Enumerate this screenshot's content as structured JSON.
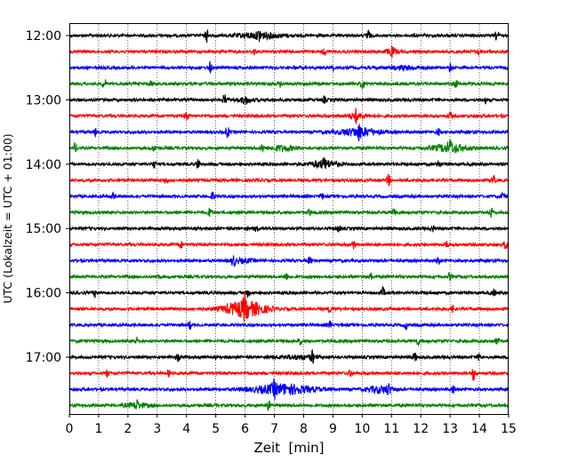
{
  "chart_data": {
    "type": "line",
    "subtype": "helicorder",
    "xlabel": "Zeit  [min]",
    "ylabel": "UTC (Lokalzeit = UTC + 01:00)",
    "xlim": [
      0,
      15
    ],
    "x_ticks": [
      "0",
      "1",
      "2",
      "3",
      "4",
      "5",
      "6",
      "7",
      "8",
      "9",
      "10",
      "11",
      "12",
      "13",
      "14",
      "15"
    ],
    "y_ticks": [
      "12:00",
      "13:00",
      "14:00",
      "15:00",
      "16:00",
      "17:00"
    ],
    "grid": "vertical dotted at each minute",
    "trace_minutes": 15,
    "trace_colors": [
      "#000000",
      "#ff0000",
      "#0000ff",
      "#008000"
    ],
    "traces": [
      {
        "start": "12:00",
        "color": "#000000",
        "events": [
          [
            4.7,
            0.6
          ],
          [
            6.5,
            0.4
          ],
          [
            10.2,
            0.5
          ],
          [
            14.6,
            0.5
          ]
        ],
        "bursts": [
          [
            6.5,
            1.5,
            0.25
          ]
        ]
      },
      {
        "start": "12:15",
        "color": "#ff0000",
        "events": [
          [
            6.3,
            0.3
          ],
          [
            8.7,
            0.3
          ],
          [
            11.0,
            0.3
          ],
          [
            14.0,
            0.3
          ]
        ],
        "bursts": [
          [
            11.0,
            0.5,
            0.2
          ]
        ]
      },
      {
        "start": "12:30",
        "color": "#0000ff",
        "events": [
          [
            4.8,
            0.5
          ],
          [
            9.0,
            0.2
          ],
          [
            13.0,
            0.3
          ]
        ],
        "bursts": [
          [
            11.5,
            1.0,
            0.15
          ]
        ]
      },
      {
        "start": "12:45",
        "color": "#008000",
        "events": [
          [
            1.2,
            0.4
          ],
          [
            2.8,
            0.3
          ],
          [
            7.2,
            0.3
          ],
          [
            10.0,
            0.4
          ],
          [
            13.2,
            0.3
          ]
        ],
        "bursts": []
      },
      {
        "start": "13:00",
        "color": "#000000",
        "events": [
          [
            5.3,
            0.5
          ],
          [
            6.0,
            0.3
          ],
          [
            8.7,
            0.3
          ],
          [
            14.2,
            0.3
          ]
        ],
        "bursts": [
          [
            6.0,
            0.6,
            0.15
          ]
        ]
      },
      {
        "start": "13:15",
        "color": "#ff0000",
        "events": [
          [
            4.0,
            0.4
          ],
          [
            9.8,
            0.5
          ],
          [
            13.0,
            0.3
          ]
        ],
        "bursts": [
          [
            9.8,
            0.8,
            0.2
          ]
        ]
      },
      {
        "start": "13:30",
        "color": "#0000ff",
        "events": [
          [
            0.9,
            0.3
          ],
          [
            5.4,
            0.5
          ],
          [
            9.9,
            0.5
          ],
          [
            12.6,
            0.3
          ]
        ],
        "bursts": [
          [
            9.9,
            1.4,
            0.35
          ]
        ]
      },
      {
        "start": "13:45",
        "color": "#008000",
        "events": [
          [
            0.2,
            0.4
          ],
          [
            2.9,
            0.3
          ],
          [
            6.6,
            0.3
          ],
          [
            13.0,
            0.5
          ]
        ],
        "bursts": [
          [
            13.0,
            1.2,
            0.35
          ],
          [
            7.3,
            1.0,
            0.2
          ]
        ]
      },
      {
        "start": "14:00",
        "color": "#000000",
        "events": [
          [
            2.9,
            0.3
          ],
          [
            4.4,
            0.5
          ],
          [
            8.7,
            0.3
          ],
          [
            12.6,
            0.4
          ]
        ],
        "bursts": [
          [
            8.7,
            1.0,
            0.3
          ]
        ]
      },
      {
        "start": "14:15",
        "color": "#ff0000",
        "events": [
          [
            3.3,
            0.3
          ],
          [
            10.9,
            0.5
          ],
          [
            14.5,
            0.3
          ]
        ],
        "bursts": []
      },
      {
        "start": "14:30",
        "color": "#0000ff",
        "events": [
          [
            1.5,
            0.3
          ],
          [
            4.9,
            0.4
          ],
          [
            8.6,
            0.3
          ],
          [
            14.8,
            0.3
          ]
        ],
        "bursts": []
      },
      {
        "start": "14:45",
        "color": "#008000",
        "events": [
          [
            4.8,
            0.4
          ],
          [
            8.2,
            0.3
          ],
          [
            11.1,
            0.4
          ],
          [
            14.4,
            0.4
          ]
        ],
        "bursts": []
      },
      {
        "start": "15:00",
        "color": "#000000",
        "events": [
          [
            6.4,
            0.3
          ],
          [
            9.2,
            0.3
          ],
          [
            12.4,
            0.3
          ]
        ],
        "bursts": []
      },
      {
        "start": "15:15",
        "color": "#ff0000",
        "events": [
          [
            3.8,
            0.3
          ],
          [
            9.7,
            0.4
          ],
          [
            12.9,
            0.3
          ],
          [
            14.9,
            0.4
          ]
        ],
        "bursts": []
      },
      {
        "start": "15:30",
        "color": "#0000ff",
        "events": [
          [
            5.6,
            0.5
          ],
          [
            8.2,
            0.3
          ],
          [
            12.6,
            0.3
          ]
        ],
        "bursts": [
          [
            5.9,
            0.8,
            0.15
          ]
        ]
      },
      {
        "start": "15:45",
        "color": "#008000",
        "events": [
          [
            3.0,
            0.3
          ],
          [
            7.4,
            0.3
          ],
          [
            10.3,
            0.3
          ],
          [
            13.0,
            0.3
          ]
        ],
        "bursts": []
      },
      {
        "start": "16:00",
        "color": "#000000",
        "events": [
          [
            0.9,
            0.4
          ],
          [
            6.1,
            0.3
          ],
          [
            10.7,
            0.5
          ],
          [
            14.5,
            0.3
          ]
        ],
        "bursts": []
      },
      {
        "start": "16:15",
        "color": "#ff0000",
        "events": [
          [
            6.0,
            0.8
          ],
          [
            8.9,
            0.3
          ],
          [
            13.1,
            0.3
          ]
        ],
        "bursts": [
          [
            6.0,
            1.4,
            0.7
          ]
        ]
      },
      {
        "start": "16:30",
        "color": "#0000ff",
        "events": [
          [
            4.1,
            0.4
          ],
          [
            8.9,
            0.3
          ],
          [
            11.5,
            0.3
          ]
        ],
        "bursts": []
      },
      {
        "start": "16:45",
        "color": "#008000",
        "events": [
          [
            2.3,
            0.3
          ],
          [
            7.9,
            0.3
          ],
          [
            11.9,
            0.3
          ],
          [
            14.6,
            0.3
          ]
        ],
        "bursts": []
      },
      {
        "start": "17:00",
        "color": "#000000",
        "events": [
          [
            3.7,
            0.3
          ],
          [
            8.3,
            0.5
          ],
          [
            11.8,
            0.4
          ],
          [
            14.0,
            0.3
          ]
        ],
        "bursts": [
          [
            7.8,
            1.2,
            0.15
          ]
        ]
      },
      {
        "start": "17:15",
        "color": "#ff0000",
        "events": [
          [
            1.3,
            0.3
          ],
          [
            3.4,
            0.3
          ],
          [
            9.6,
            0.3
          ],
          [
            13.8,
            0.6
          ]
        ],
        "bursts": []
      },
      {
        "start": "17:30",
        "color": "#0000ff",
        "events": [
          [
            7.0,
            0.5
          ],
          [
            10.9,
            0.4
          ],
          [
            13.1,
            0.4
          ]
        ],
        "bursts": [
          [
            7.3,
            2.0,
            0.45
          ],
          [
            10.6,
            0.8,
            0.3
          ]
        ]
      },
      {
        "start": "17:45",
        "color": "#008000",
        "events": [
          [
            2.3,
            0.3
          ],
          [
            6.8,
            0.4
          ]
        ],
        "bursts": [
          [
            2.3,
            0.8,
            0.2
          ]
        ]
      }
    ]
  }
}
